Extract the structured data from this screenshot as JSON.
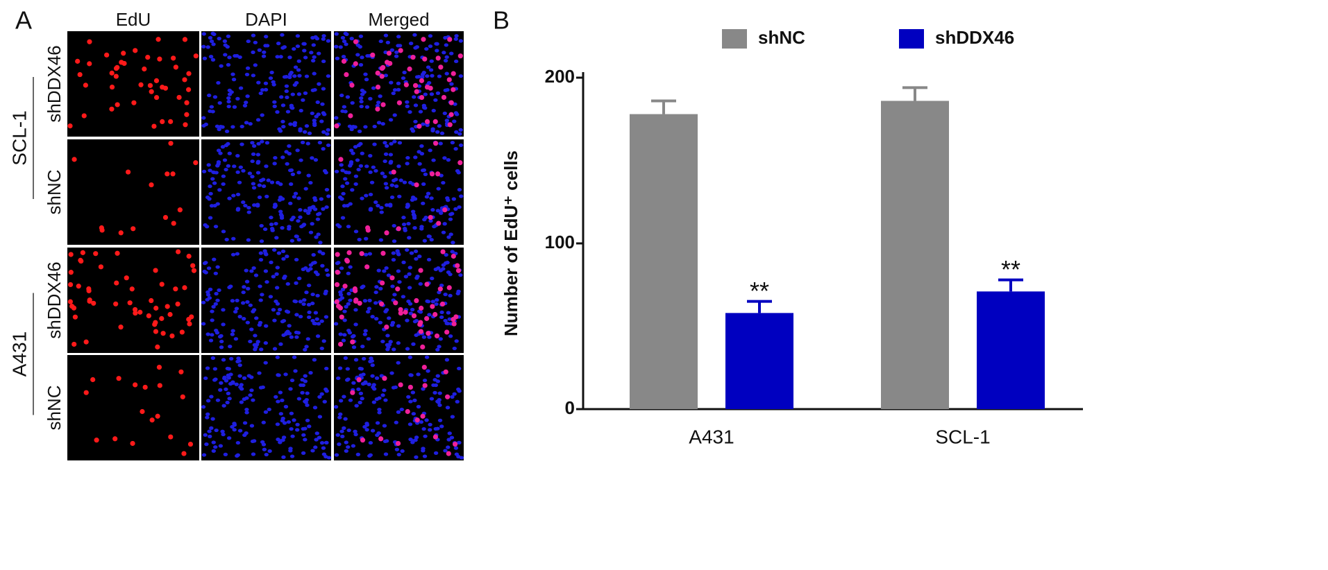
{
  "panel_a": {
    "label": "A",
    "columns": [
      "EdU",
      "DAPI",
      "Merged"
    ],
    "rows": [
      {
        "group": "SCL-1",
        "conditions": [
          "shDDX46",
          "shNC"
        ]
      },
      {
        "group": "A431",
        "conditions": [
          "shDDX46",
          "shNC"
        ]
      }
    ]
  },
  "chart_data": {
    "type": "bar",
    "label": "B",
    "ylabel": "Number of EdU⁺ cells",
    "categories": [
      "A431",
      "SCL-1"
    ],
    "series": [
      {
        "name": "shNC",
        "color": "#888888",
        "values": [
          178,
          186
        ],
        "errors": [
          8,
          8
        ]
      },
      {
        "name": "shDDX46",
        "color": "#0000c0",
        "values": [
          58,
          71
        ],
        "errors": [
          7,
          7
        ],
        "annotations": [
          "**",
          "**"
        ]
      }
    ],
    "ylim": [
      0,
      200
    ],
    "yticks": [
      0,
      100,
      200
    ]
  }
}
